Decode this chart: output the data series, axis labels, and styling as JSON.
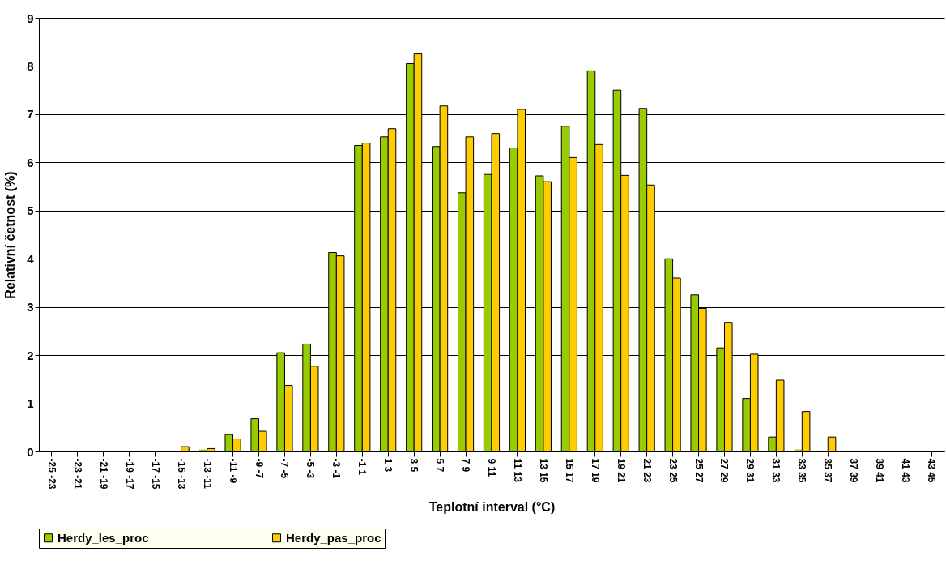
{
  "chart_data": {
    "type": "bar",
    "xlabel": "Teplotní interval (°C)",
    "ylabel": "Relativní četnost (%)",
    "categories": [
      "-25 -23",
      "-23 -21",
      "-21 -19",
      "-19 -17",
      "-17 -15",
      "-15 -13",
      "-13 -11",
      "-11 -9",
      "-9 -7",
      "-7 -5",
      "-5 -3",
      "-3 -1",
      "-1 1",
      "1 3",
      "3 5",
      "5 7",
      "7 9",
      "9 11",
      "11 13",
      "13 15",
      "15 17",
      "17 19",
      "19 21",
      "21 23",
      "23 25",
      "25 27",
      "27 29",
      "29 31",
      "31 33",
      "33 35",
      "35 37",
      "37 39",
      "39 41",
      "41 43",
      "43 45"
    ],
    "series": [
      {
        "name": "Herdy_les_proc",
        "color": "#99cc00",
        "values": [
          0,
          0,
          0.01,
          0.01,
          0.01,
          0,
          0.04,
          0.35,
          0.68,
          2.05,
          2.23,
          4.13,
          6.35,
          6.53,
          8.05,
          6.33,
          5.37,
          5.75,
          6.3,
          5.72,
          6.75,
          7.9,
          7.5,
          7.12,
          4.0,
          3.25,
          2.15,
          1.1,
          0.3,
          0.04,
          0,
          0.01,
          0.01,
          0,
          0
        ]
      },
      {
        "name": "Herdy_pas_proc",
        "color": "#ffcc00",
        "values": [
          0,
          0,
          0.01,
          0.01,
          0.01,
          0.1,
          0.06,
          0.26,
          0.42,
          1.37,
          1.77,
          4.06,
          6.4,
          6.7,
          8.25,
          7.17,
          6.53,
          6.6,
          7.1,
          5.6,
          6.1,
          6.37,
          5.73,
          5.53,
          3.6,
          2.97,
          2.68,
          2.02,
          1.48,
          0.83,
          0.3,
          0.01,
          0.01,
          0,
          0
        ]
      }
    ],
    "ylim": [
      0,
      9
    ],
    "yticks": [
      0,
      1,
      2,
      3,
      4,
      5,
      6,
      7,
      8,
      9
    ],
    "grid": "y",
    "legend": "bottom"
  }
}
